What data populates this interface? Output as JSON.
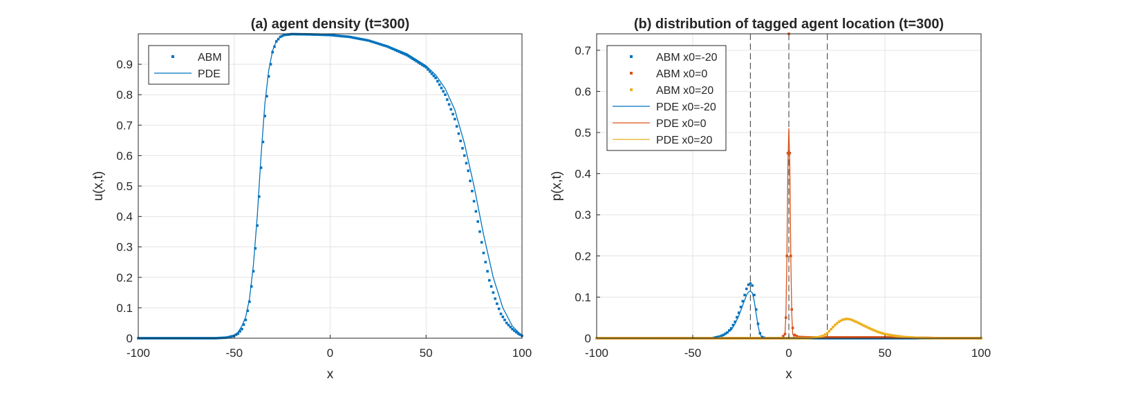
{
  "chart_data": [
    {
      "type": "line",
      "title": "(a) agent density (t=300)",
      "xlabel": "x",
      "ylabel": "u(x,t)",
      "xlim": [
        -100,
        100
      ],
      "ylim": [
        0,
        1
      ],
      "xticks": [
        -100,
        -50,
        0,
        50,
        100
      ],
      "yticks": [
        0,
        0.1,
        0.2,
        0.3,
        0.4,
        0.5,
        0.6,
        0.7,
        0.8,
        0.9
      ],
      "grid": true,
      "legend_position": "top-left",
      "series": [
        {
          "name": "ABM",
          "style": "markers",
          "color": "#0072BD",
          "points": [
            [
              -100,
              0
            ],
            [
              -90,
              0
            ],
            [
              -80,
              0
            ],
            [
              -70,
              0
            ],
            [
              -60,
              0
            ],
            [
              -54,
              0.002
            ],
            [
              -50,
              0.008
            ],
            [
              -48,
              0.015
            ],
            [
              -46,
              0.03
            ],
            [
              -44,
              0.06
            ],
            [
              -42,
              0.12
            ],
            [
              -40,
              0.22
            ],
            [
              -38,
              0.37
            ],
            [
              -36,
              0.56
            ],
            [
              -34,
              0.73
            ],
            [
              -32,
              0.86
            ],
            [
              -30,
              0.94
            ],
            [
              -28,
              0.975
            ],
            [
              -26,
              0.99
            ],
            [
              -24,
              0.996
            ],
            [
              -20,
              0.999
            ],
            [
              -10,
              0.998
            ],
            [
              0,
              0.996
            ],
            [
              10,
              0.99
            ],
            [
              20,
              0.978
            ],
            [
              30,
              0.958
            ],
            [
              40,
              0.93
            ],
            [
              50,
              0.89
            ],
            [
              55,
              0.855
            ],
            [
              60,
              0.8
            ],
            [
              65,
              0.72
            ],
            [
              70,
              0.6
            ],
            [
              72,
              0.55
            ],
            [
              75,
              0.45
            ],
            [
              78,
              0.35
            ],
            [
              80,
              0.28
            ],
            [
              83,
              0.19
            ],
            [
              86,
              0.13
            ],
            [
              89,
              0.08
            ],
            [
              92,
              0.05
            ],
            [
              95,
              0.03
            ],
            [
              98,
              0.015
            ],
            [
              100,
              0.008
            ]
          ]
        },
        {
          "name": "PDE",
          "style": "line",
          "color": "#0072BD",
          "points": [
            [
              -100,
              0
            ],
            [
              -80,
              0
            ],
            [
              -60,
              0
            ],
            [
              -55,
              0.002
            ],
            [
              -50,
              0.01
            ],
            [
              -48,
              0.02
            ],
            [
              -46,
              0.04
            ],
            [
              -44,
              0.07
            ],
            [
              -42,
              0.13
            ],
            [
              -40,
              0.24
            ],
            [
              -38,
              0.4
            ],
            [
              -36,
              0.6
            ],
            [
              -34,
              0.77
            ],
            [
              -32,
              0.88
            ],
            [
              -30,
              0.945
            ],
            [
              -28,
              0.977
            ],
            [
              -26,
              0.99
            ],
            [
              -24,
              0.996
            ],
            [
              -20,
              0.999
            ],
            [
              -10,
              0.998
            ],
            [
              0,
              0.996
            ],
            [
              10,
              0.99
            ],
            [
              20,
              0.978
            ],
            [
              30,
              0.96
            ],
            [
              40,
              0.935
            ],
            [
              50,
              0.895
            ],
            [
              55,
              0.865
            ],
            [
              60,
              0.82
            ],
            [
              65,
              0.75
            ],
            [
              70,
              0.64
            ],
            [
              75,
              0.5
            ],
            [
              80,
              0.34
            ],
            [
              85,
              0.2
            ],
            [
              90,
              0.1
            ],
            [
              95,
              0.04
            ],
            [
              100,
              0.008
            ]
          ]
        }
      ]
    },
    {
      "type": "line",
      "title": "(b) distribution of tagged agent location (t=300)",
      "xlabel": "x",
      "ylabel": "p(x,t)",
      "xlim": [
        -100,
        100
      ],
      "ylim": [
        0,
        0.74
      ],
      "xticks": [
        -100,
        -50,
        0,
        50,
        100
      ],
      "yticks": [
        0,
        0.1,
        0.2,
        0.3,
        0.4,
        0.5,
        0.6,
        0.7
      ],
      "grid": true,
      "legend_position": "top-left",
      "vertical_lines_x": [
        -20,
        0,
        20
      ],
      "series": [
        {
          "name": "ABM x0=-20",
          "style": "markers",
          "color": "#0072BD",
          "points": [
            [
              -100,
              0
            ],
            [
              -60,
              0
            ],
            [
              -40,
              0
            ],
            [
              -38,
              0.002
            ],
            [
              -36,
              0.004
            ],
            [
              -34,
              0.008
            ],
            [
              -32,
              0.014
            ],
            [
              -30,
              0.024
            ],
            [
              -28,
              0.04
            ],
            [
              -26,
              0.062
            ],
            [
              -24,
              0.09
            ],
            [
              -22,
              0.12
            ],
            [
              -21,
              0.13
            ],
            [
              -20,
              0.133
            ],
            [
              -19,
              0.128
            ],
            [
              -18,
              0.105
            ],
            [
              -17,
              0.07
            ],
            [
              -16,
              0.035
            ],
            [
              -15,
              0.012
            ],
            [
              -14,
              0.003
            ],
            [
              -12,
              0
            ],
            [
              0,
              0
            ],
            [
              100,
              0
            ]
          ]
        },
        {
          "name": "ABM x0=0",
          "style": "markers",
          "color": "#D95319",
          "points": [
            [
              -100,
              0
            ],
            [
              -4,
              0
            ],
            [
              -2,
              0.01
            ],
            [
              -1.5,
              0.05
            ],
            [
              -1,
              0.2
            ],
            [
              -0.5,
              0.45
            ],
            [
              0,
              0.74
            ],
            [
              0.5,
              0.45
            ],
            [
              1,
              0.2
            ],
            [
              1.5,
              0.07
            ],
            [
              2,
              0.025
            ],
            [
              3,
              0.008
            ],
            [
              5,
              0.003
            ],
            [
              10,
              0.002
            ],
            [
              20,
              0.002
            ],
            [
              30,
              0.002
            ],
            [
              40,
              0.002
            ],
            [
              50,
              0.002
            ],
            [
              60,
              0.0015
            ],
            [
              70,
              0.001
            ],
            [
              80,
              0
            ],
            [
              100,
              0
            ]
          ]
        },
        {
          "name": "ABM x0=20",
          "style": "markers",
          "color": "#EDB120",
          "points": [
            [
              -100,
              0
            ],
            [
              10,
              0
            ],
            [
              15,
              0.002
            ],
            [
              18,
              0.006
            ],
            [
              20,
              0.012
            ],
            [
              22,
              0.022
            ],
            [
              24,
              0.032
            ],
            [
              26,
              0.04
            ],
            [
              28,
              0.045
            ],
            [
              30,
              0.047
            ],
            [
              32,
              0.046
            ],
            [
              35,
              0.04
            ],
            [
              38,
              0.033
            ],
            [
              42,
              0.024
            ],
            [
              46,
              0.016
            ],
            [
              50,
              0.01
            ],
            [
              55,
              0.006
            ],
            [
              60,
              0.003
            ],
            [
              65,
              0.0015
            ],
            [
              70,
              0.0005
            ],
            [
              80,
              0
            ],
            [
              100,
              0
            ]
          ]
        },
        {
          "name": "PDE x0=-20",
          "style": "line",
          "color": "#0072BD",
          "points": [
            [
              -100,
              0
            ],
            [
              -40,
              0
            ],
            [
              -35,
              0.005
            ],
            [
              -30,
              0.02
            ],
            [
              -28,
              0.035
            ],
            [
              -26,
              0.055
            ],
            [
              -24,
              0.08
            ],
            [
              -22,
              0.105
            ],
            [
              -21,
              0.112
            ],
            [
              -20,
              0.115
            ],
            [
              -19,
              0.11
            ],
            [
              -18,
              0.09
            ],
            [
              -17,
              0.06
            ],
            [
              -16,
              0.03
            ],
            [
              -15,
              0.01
            ],
            [
              -14,
              0.002
            ],
            [
              -12,
              0
            ],
            [
              100,
              0
            ]
          ]
        },
        {
          "name": "PDE x0=0",
          "style": "line",
          "color": "#D95319",
          "points": [
            [
              -100,
              0
            ],
            [
              -3,
              0
            ],
            [
              -2,
              0.01
            ],
            [
              -1.5,
              0.06
            ],
            [
              -1,
              0.2
            ],
            [
              -0.5,
              0.42
            ],
            [
              0,
              0.51
            ],
            [
              0.5,
              0.42
            ],
            [
              1,
              0.2
            ],
            [
              1.5,
              0.06
            ],
            [
              2,
              0.01
            ],
            [
              3,
              0
            ],
            [
              100,
              0
            ]
          ]
        },
        {
          "name": "PDE x0=20",
          "style": "line",
          "color": "#EDB120",
          "points": [
            [
              -100,
              0
            ],
            [
              10,
              0
            ],
            [
              15,
              0.002
            ],
            [
              18,
              0.007
            ],
            [
              20,
              0.013
            ],
            [
              22,
              0.022
            ],
            [
              24,
              0.031
            ],
            [
              26,
              0.039
            ],
            [
              28,
              0.044
            ],
            [
              30,
              0.046
            ],
            [
              32,
              0.045
            ],
            [
              35,
              0.04
            ],
            [
              38,
              0.033
            ],
            [
              42,
              0.024
            ],
            [
              46,
              0.016
            ],
            [
              50,
              0.01
            ],
            [
              55,
              0.005
            ],
            [
              60,
              0.0025
            ],
            [
              70,
              0.0005
            ],
            [
              80,
              0
            ],
            [
              100,
              0
            ]
          ]
        }
      ]
    }
  ]
}
